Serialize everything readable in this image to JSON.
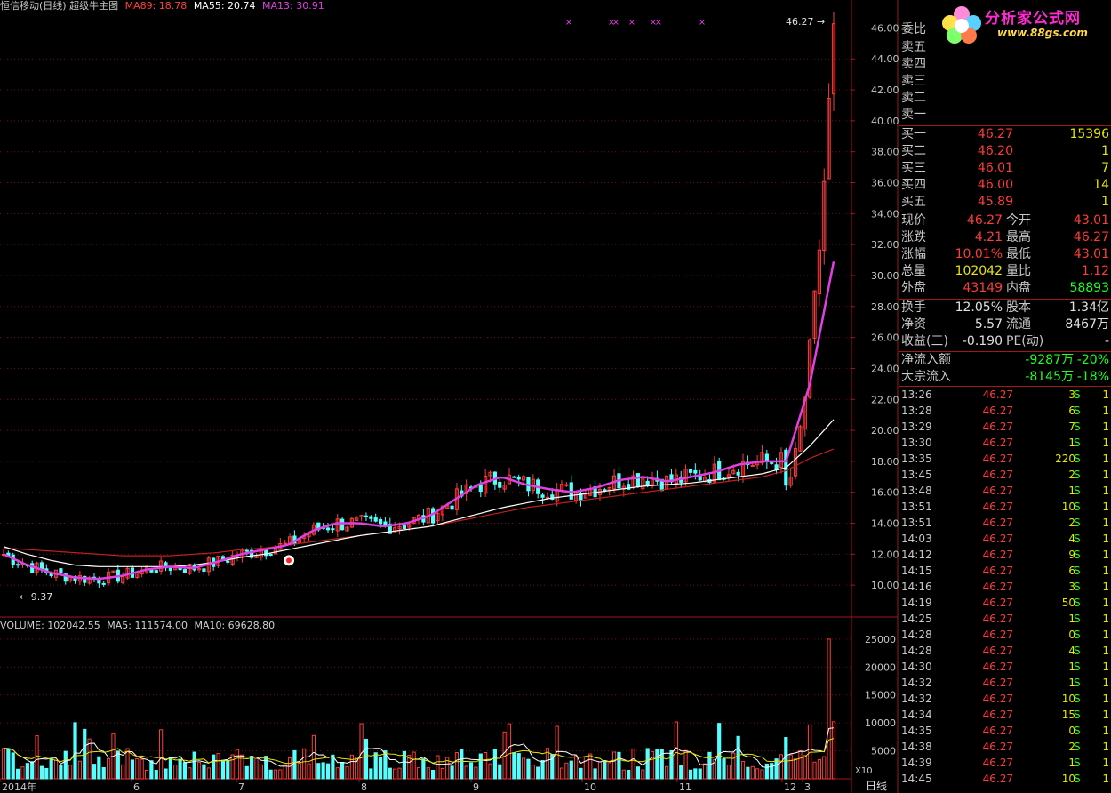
{
  "header": {
    "stock_title": "恒信移动(日线)",
    "indicator_name": "超级牛主图",
    "ma_a": "MA89: 18.78",
    "ma_b": "MA55: 20.74",
    "ma_c": "MA13: 30.91"
  },
  "volume_header": {
    "volume": "VOLUME: 102042.55",
    "ma5": "MA5: 111574.00",
    "ma10": "MA10: 69628.80"
  },
  "colors": {
    "up": "#ff3c3c",
    "down": "#54ffff",
    "ma13": "#e040e0",
    "ma55": "#ffffff",
    "ma89": "#c02020",
    "axis": "#a01818",
    "grid": "#6a1010",
    "green": "#20ff20",
    "yellow": "#e6e600"
  },
  "chart_data": [
    {
      "type": "candlestick",
      "title": "超级牛主图",
      "y_ticks": [
        "46.00",
        "44.00",
        "42.00",
        "40.00",
        "38.00",
        "36.00",
        "34.00",
        "32.00",
        "30.00",
        "28.00",
        "26.00",
        "24.00",
        "22.00",
        "20.00",
        "18.00",
        "16.00",
        "14.00",
        "12.00",
        "10.00"
      ],
      "ylim": [
        8.0,
        47.0
      ],
      "x_ticks": [
        "2014年",
        "6",
        "7",
        "8",
        "9",
        "10",
        "11",
        "12",
        "3"
      ],
      "low_label": "9.37",
      "high_label": "46.27",
      "series": [
        {
          "name": "MA13",
          "last": 30.91,
          "values": [
            12.0,
            11.3,
            10.8,
            10.5,
            10.4,
            10.6,
            11.0,
            11.2,
            11.1,
            11.5,
            12.0,
            12.3,
            12.6,
            13.5,
            14.0,
            14.0,
            13.8,
            14.0,
            14.5,
            15.5,
            16.5,
            17.0,
            16.5,
            16.2,
            16.0,
            16.3,
            16.8,
            17.0,
            16.7,
            17.0,
            17.3,
            17.8,
            18.0,
            18.0,
            23.0,
            30.9
          ]
        },
        {
          "name": "MA55",
          "last": 20.74,
          "values": [
            12.5,
            12.0,
            11.6,
            11.3,
            11.2,
            11.2,
            11.2,
            11.2,
            11.3,
            11.5,
            11.8,
            12.0,
            12.3,
            12.6,
            12.9,
            13.2,
            13.4,
            13.6,
            13.8,
            14.2,
            14.6,
            15.0,
            15.3,
            15.6,
            15.8,
            16.0,
            16.2,
            16.4,
            16.5,
            16.6,
            16.8,
            17.0,
            17.2,
            17.6,
            19.0,
            20.7
          ]
        },
        {
          "name": "MA89",
          "last": 18.78,
          "values": [
            12.4,
            12.3,
            12.2,
            12.1,
            12.0,
            11.9,
            11.9,
            11.9,
            12.0,
            12.1,
            12.3,
            12.4,
            12.6,
            12.8,
            13.0,
            13.2,
            13.4,
            13.6,
            13.8,
            14.1,
            14.4,
            14.7,
            15.0,
            15.2,
            15.4,
            15.6,
            15.8,
            16.0,
            16.2,
            16.4,
            16.6,
            16.8,
            17.0,
            17.4,
            18.2,
            18.8
          ]
        }
      ]
    },
    {
      "type": "bar",
      "title": "VOLUME",
      "y_ticks": [
        "25000",
        "20000",
        "15000",
        "10000",
        "5000"
      ],
      "ylim": [
        0,
        28000
      ],
      "multiplier_label": "X10",
      "series": [
        {
          "name": "VOLUME",
          "last": 102042.55
        },
        {
          "name": "MA5",
          "last": 111574.0
        },
        {
          "name": "MA10",
          "last": 69628.8
        }
      ]
    }
  ],
  "quote": {
    "weibi_label": "委比",
    "sells": [
      {
        "label": "卖五"
      },
      {
        "label": "卖四"
      },
      {
        "label": "卖三"
      },
      {
        "label": "卖二"
      },
      {
        "label": "卖一"
      }
    ],
    "buys": [
      {
        "label": "买一",
        "price": "46.27",
        "vol": "15396"
      },
      {
        "label": "买二",
        "price": "46.20",
        "vol": "1"
      },
      {
        "label": "买三",
        "price": "46.01",
        "vol": "7"
      },
      {
        "label": "买四",
        "price": "46.00",
        "vol": "14"
      },
      {
        "label": "买五",
        "price": "45.89",
        "vol": "1"
      }
    ],
    "stats": [
      {
        "l1": "现价",
        "v1": "46.27",
        "l2": "今开",
        "v2": "43.01"
      },
      {
        "l1": "涨跌",
        "v1": "4.21",
        "l2": "最高",
        "v2": "46.27"
      },
      {
        "l1": "涨幅",
        "v1": "10.01%",
        "l2": "最低",
        "v2": "43.01"
      },
      {
        "l1": "总量",
        "v1": "102042",
        "l2": "量比",
        "v2": "1.12"
      },
      {
        "l1": "外盘",
        "v1": "43149",
        "l2": "内盘",
        "v2": "58893"
      }
    ],
    "info": [
      {
        "l1": "换手",
        "v1": "12.05%",
        "l2": "股本",
        "v2": "1.34亿"
      },
      {
        "l1": "净资",
        "v1": "5.57",
        "l2": "流通",
        "v2": "8467万"
      },
      {
        "l1": "收益(三)",
        "v1": "-0.190",
        "l2": "PE(动)",
        "v2": "-"
      }
    ],
    "flows": [
      {
        "label": "净流入额",
        "amount": "-9287万",
        "pct": "-20%"
      },
      {
        "label": "大宗流入",
        "amount": "-8145万",
        "pct": "-18%"
      }
    ]
  },
  "ticks": [
    {
      "time": "13:26",
      "price": "46.27",
      "vol": "3",
      "side": "S",
      "n": "1"
    },
    {
      "time": "13:28",
      "price": "46.27",
      "vol": "6",
      "side": "S",
      "n": "1"
    },
    {
      "time": "13:29",
      "price": "46.27",
      "vol": "7",
      "side": "S",
      "n": "1"
    },
    {
      "time": "13:30",
      "price": "46.27",
      "vol": "1",
      "side": "S",
      "n": "1"
    },
    {
      "time": "13:35",
      "price": "46.27",
      "vol": "220",
      "side": "S",
      "n": "1"
    },
    {
      "time": "13:45",
      "price": "46.27",
      "vol": "2",
      "side": "S",
      "n": "1"
    },
    {
      "time": "13:48",
      "price": "46.27",
      "vol": "1",
      "side": "S",
      "n": "1"
    },
    {
      "time": "13:51",
      "price": "46.27",
      "vol": "10",
      "side": "S",
      "n": "1"
    },
    {
      "time": "13:51",
      "price": "46.27",
      "vol": "2",
      "side": "S",
      "n": "1"
    },
    {
      "time": "14:03",
      "price": "46.27",
      "vol": "4",
      "side": "S",
      "n": "1"
    },
    {
      "time": "14:12",
      "price": "46.27",
      "vol": "9",
      "side": "S",
      "n": "1"
    },
    {
      "time": "14:15",
      "price": "46.27",
      "vol": "6",
      "side": "S",
      "n": "1"
    },
    {
      "time": "14:16",
      "price": "46.27",
      "vol": "3",
      "side": "S",
      "n": "1"
    },
    {
      "time": "14:19",
      "price": "46.27",
      "vol": "50",
      "side": "S",
      "n": "1"
    },
    {
      "time": "14:25",
      "price": "46.27",
      "vol": "1",
      "side": "S",
      "n": "1"
    },
    {
      "time": "14:28",
      "price": "46.27",
      "vol": "0",
      "side": "S",
      "n": "1"
    },
    {
      "time": "14:28",
      "price": "46.27",
      "vol": "4",
      "side": "S",
      "n": "1"
    },
    {
      "time": "14:30",
      "price": "46.27",
      "vol": "1",
      "side": "S",
      "n": "1"
    },
    {
      "time": "14:32",
      "price": "46.27",
      "vol": "1",
      "side": "S",
      "n": "1"
    },
    {
      "time": "14:32",
      "price": "46.27",
      "vol": "10",
      "side": "S",
      "n": "1"
    },
    {
      "time": "14:34",
      "price": "46.27",
      "vol": "15",
      "side": "S",
      "n": "1"
    },
    {
      "time": "14:35",
      "price": "46.27",
      "vol": "0",
      "side": "S",
      "n": "1"
    },
    {
      "time": "14:38",
      "price": "46.27",
      "vol": "2",
      "side": "S",
      "n": "1"
    },
    {
      "time": "14:39",
      "price": "46.27",
      "vol": "1",
      "side": "S",
      "n": "1"
    },
    {
      "time": "14:45",
      "price": "46.27",
      "vol": "10",
      "side": "S",
      "n": "1"
    }
  ],
  "period_tab": "日线",
  "watermark": {
    "brand": "分析家公式网",
    "url": "www.88gs.com"
  }
}
